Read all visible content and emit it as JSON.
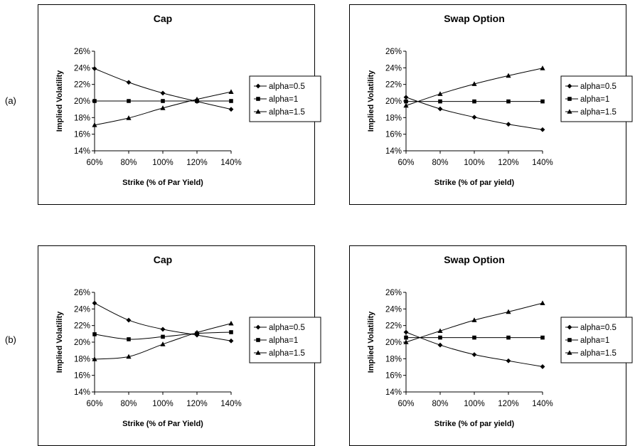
{
  "row_labels": [
    "(a)",
    "(b)"
  ],
  "chart_data": [
    {
      "type": "line",
      "title": "Cap",
      "xlabel": "Strike (% of Par Yield)",
      "ylabel": "Implied Volatility",
      "x": [
        60,
        80,
        100,
        120,
        140
      ],
      "xticks": [
        "60%",
        "80%",
        "100%",
        "120%",
        "140%"
      ],
      "ylim": [
        0.14,
        0.26
      ],
      "yticks": [
        "14%",
        "16%",
        "18%",
        "20%",
        "22%",
        "24%",
        "26%"
      ],
      "grid": false,
      "legend": "right",
      "series": [
        {
          "name": "alpha=0.5",
          "marker": "diamond",
          "values": [
            0.239,
            0.2225,
            0.2095,
            0.1995,
            0.19
          ]
        },
        {
          "name": "alpha=1",
          "marker": "square",
          "values": [
            0.2,
            0.2,
            0.2,
            0.2,
            0.2
          ]
        },
        {
          "name": "alpha=1.5",
          "marker": "triangle",
          "values": [
            0.171,
            0.1795,
            0.1915,
            0.202,
            0.211
          ]
        }
      ]
    },
    {
      "type": "line",
      "title": "Swap Option",
      "xlabel": "Strike (% of par yield)",
      "ylabel": "Implied Volatility",
      "x": [
        60,
        80,
        100,
        120,
        140
      ],
      "xticks": [
        "60%",
        "80%",
        "100%",
        "120%",
        "140%"
      ],
      "ylim": [
        0.14,
        0.26
      ],
      "yticks": [
        "14%",
        "16%",
        "18%",
        "20%",
        "22%",
        "24%",
        "26%"
      ],
      "grid": false,
      "legend": "right",
      "series": [
        {
          "name": "alpha=0.5",
          "marker": "diamond",
          "values": [
            0.2045,
            0.1905,
            0.1805,
            0.172,
            0.1655
          ]
        },
        {
          "name": "alpha=1",
          "marker": "square",
          "values": [
            0.1995,
            0.1995,
            0.1995,
            0.1995,
            0.1995
          ]
        },
        {
          "name": "alpha=1.5",
          "marker": "triangle",
          "values": [
            0.1945,
            0.2085,
            0.2205,
            0.2305,
            0.2395
          ]
        }
      ]
    },
    {
      "type": "line",
      "title": "Cap",
      "xlabel": "Strike (% of Par Yield)",
      "ylabel": "Implied Volatility",
      "x": [
        60,
        80,
        100,
        120,
        140
      ],
      "xticks": [
        "60%",
        "80%",
        "100%",
        "120%",
        "140%"
      ],
      "ylim": [
        0.14,
        0.26
      ],
      "yticks": [
        "14%",
        "16%",
        "18%",
        "20%",
        "22%",
        "24%",
        "26%"
      ],
      "grid": false,
      "legend": "right",
      "series": [
        {
          "name": "alpha=0.5",
          "marker": "diamond",
          "values": [
            0.247,
            0.2265,
            0.2155,
            0.2085,
            0.2015
          ]
        },
        {
          "name": "alpha=1",
          "marker": "square",
          "values": [
            0.2095,
            0.2035,
            0.2065,
            0.2105,
            0.212
          ]
        },
        {
          "name": "alpha=1.5",
          "marker": "triangle",
          "values": [
            0.1795,
            0.1825,
            0.1975,
            0.2115,
            0.2225
          ]
        }
      ]
    },
    {
      "type": "line",
      "title": "Swap Option",
      "xlabel": "Strike (% of par yield)",
      "ylabel": "Implied Volatility",
      "x": [
        60,
        80,
        100,
        120,
        140
      ],
      "xticks": [
        "60%",
        "80%",
        "100%",
        "120%",
        "140%"
      ],
      "ylim": [
        0.14,
        0.26
      ],
      "yticks": [
        "14%",
        "16%",
        "18%",
        "20%",
        "22%",
        "24%",
        "26%"
      ],
      "grid": false,
      "legend": "right",
      "series": [
        {
          "name": "alpha=0.5",
          "marker": "diamond",
          "values": [
            0.212,
            0.1965,
            0.185,
            0.1775,
            0.1705
          ]
        },
        {
          "name": "alpha=1",
          "marker": "square",
          "values": [
            0.2055,
            0.2055,
            0.2055,
            0.2055,
            0.2055
          ]
        },
        {
          "name": "alpha=1.5",
          "marker": "triangle",
          "values": [
            0.2,
            0.2135,
            0.2265,
            0.2365,
            0.247
          ]
        }
      ]
    }
  ]
}
